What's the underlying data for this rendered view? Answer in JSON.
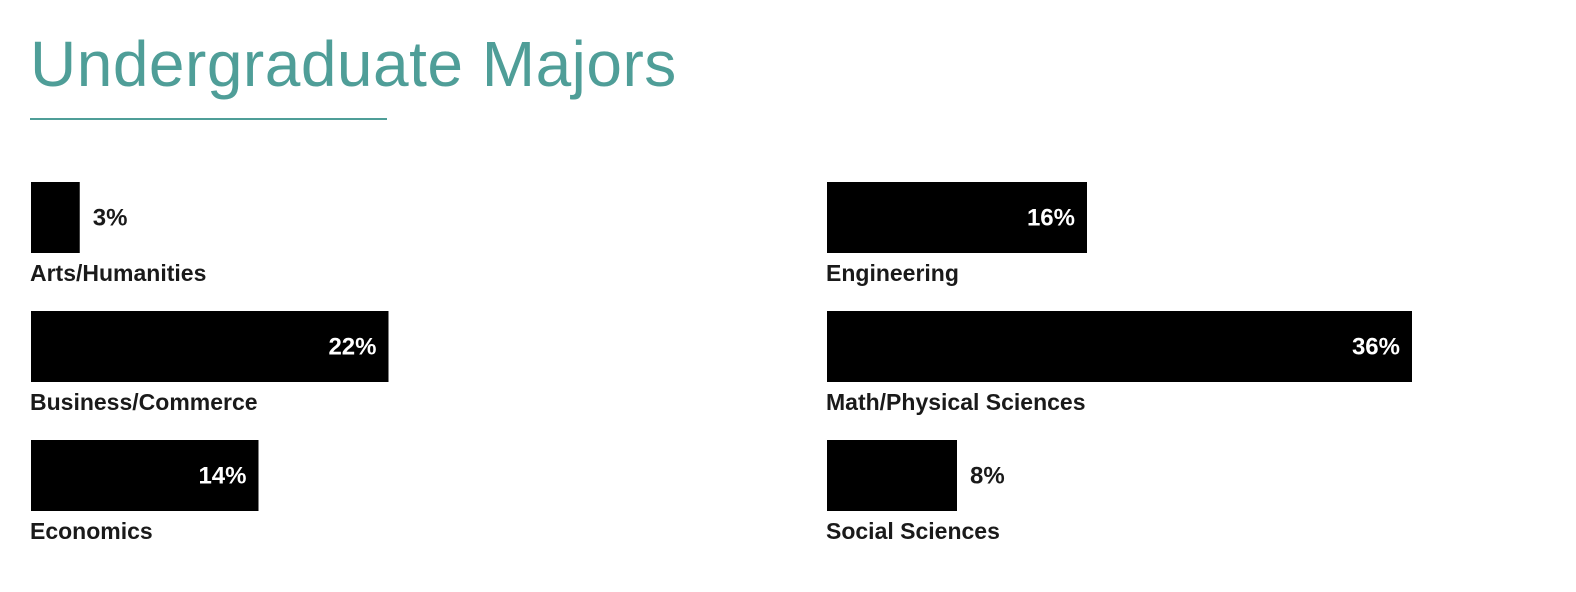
{
  "colors": {
    "accent": "#4f9e98",
    "bar": "#000000",
    "label_text": "#1a1a1a",
    "value_inside": "#ffffff",
    "value_outside": "#1a1a1a"
  },
  "chart_data": {
    "type": "bar",
    "orientation": "horizontal",
    "title": "Undergraduate Majors",
    "unit": "%",
    "categories": [
      "Arts/Humanities",
      "Business/Commerce",
      "Economics",
      "Engineering",
      "Math/Physical Sciences",
      "Social Sciences"
    ],
    "values": [
      3,
      22,
      14,
      16,
      36,
      8
    ],
    "value_labels": [
      "3%",
      "22%",
      "14%",
      "16%",
      "36%",
      "8%"
    ],
    "columns": [
      [
        "Arts/Humanities",
        "Business/Commerce",
        "Economics"
      ],
      [
        "Engineering",
        "Math/Physical Sciences",
        "Social Sciences"
      ]
    ],
    "grid": false,
    "legend": "none"
  }
}
